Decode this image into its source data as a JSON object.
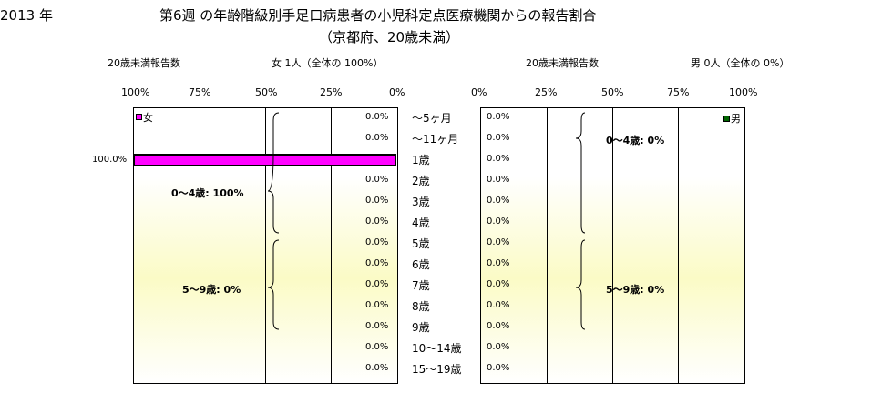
{
  "header": {
    "year": "2013 年",
    "title": "第6週 の年齢階級別手足口病患者の小児科定点医療機関からの報告割合",
    "subtitle": "（京都府、20歳未満）"
  },
  "female_info": {
    "label": "20歳未満報告数",
    "count": "女 1人（全体の 100%）"
  },
  "male_info": {
    "label": "20歳未満報告数",
    "count": "男 0人（全体の 0%）"
  },
  "colors": {
    "female": "#ff00ff",
    "male": "#006400",
    "plot_fill": "#fbfbc6"
  },
  "chart_data": [
    {
      "type": "bar",
      "orientation": "horizontal",
      "series": [
        {
          "name": "女",
          "values": [
            0,
            0,
            100,
            0,
            0,
            0,
            0,
            0,
            0,
            0,
            0,
            0,
            0
          ]
        }
      ],
      "categories": [
        "～5ヶ月",
        "～11ヶ月",
        "1歳",
        "2歳",
        "3歳",
        "4歳",
        "5歳",
        "6歳",
        "7歳",
        "8歳",
        "9歳",
        "10～14歳",
        "15～19歳"
      ],
      "value_labels": [
        "0.0%",
        "0.0%",
        "100.0%",
        "0.0%",
        "0.0%",
        "0.0%",
        "0.0%",
        "0.0%",
        "0.0%",
        "0.0%",
        "0.0%",
        "0.0%",
        "0.0%"
      ],
      "x_ticks": [
        "100%",
        "75%",
        "50%",
        "25%",
        "0%"
      ],
      "xlim": [
        100,
        0
      ],
      "annotations": [
        "0～4歳: 100%",
        "5～9歳: 0%"
      ],
      "grid": true
    },
    {
      "type": "bar",
      "orientation": "horizontal",
      "series": [
        {
          "name": "男",
          "values": [
            0,
            0,
            0,
            0,
            0,
            0,
            0,
            0,
            0,
            0,
            0,
            0,
            0
          ]
        }
      ],
      "categories": [
        "～5ヶ月",
        "～11ヶ月",
        "1歳",
        "2歳",
        "3歳",
        "4歳",
        "5歳",
        "6歳",
        "7歳",
        "8歳",
        "9歳",
        "10～14歳",
        "15～19歳"
      ],
      "value_labels": [
        "0.0%",
        "0.0%",
        "0.0%",
        "0.0%",
        "0.0%",
        "0.0%",
        "0.0%",
        "0.0%",
        "0.0%",
        "0.0%",
        "0.0%",
        "0.0%",
        "0.0%"
      ],
      "x_ticks": [
        "0%",
        "25%",
        "50%",
        "75%",
        "100%"
      ],
      "xlim": [
        0,
        100
      ],
      "annotations": [
        "0～4歳: 0%",
        "5～9歳: 0%"
      ],
      "grid": true
    }
  ]
}
